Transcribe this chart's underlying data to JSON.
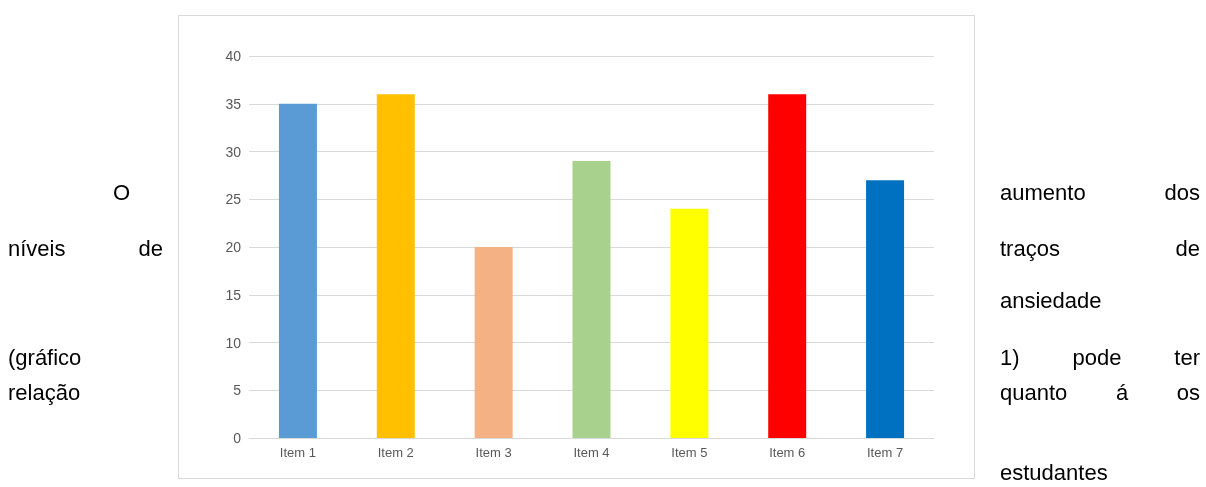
{
  "chart_data": {
    "type": "bar",
    "categories": [
      "Item 1",
      "Item 2",
      "Item 3",
      "Item 4",
      "Item 5",
      "Item 6",
      "Item 7"
    ],
    "values": [
      35,
      36,
      20,
      29,
      24,
      36,
      27
    ],
    "colors": [
      "#5b9bd5",
      "#ffc000",
      "#f4b183",
      "#a9d18e",
      "#ffff00",
      "#ff0000",
      "#0070c0"
    ],
    "ylim": [
      0,
      40
    ],
    "yticks": [
      0,
      5,
      10,
      15,
      20,
      25,
      30,
      35,
      40
    ],
    "grid": "y",
    "annotations": [
      "O",
      "aumento dos",
      "níveis de",
      "traços de",
      "ansiedade",
      "(gráfico",
      "1) pode ter",
      "relação",
      "quanto á os",
      "estudantes"
    ]
  }
}
